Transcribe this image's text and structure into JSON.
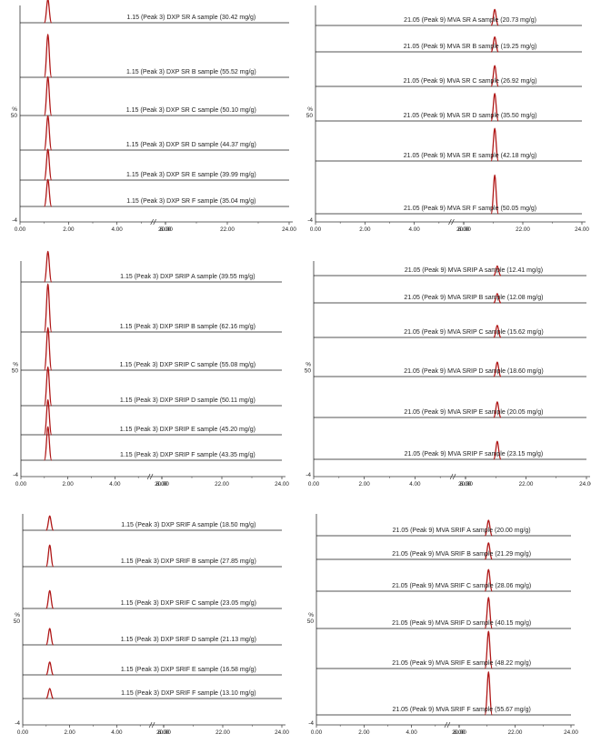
{
  "colors": {
    "baseline": "#1a1a1a",
    "peak": "#b01818",
    "axis": "#333333"
  },
  "chart_data": [
    {
      "type": "line",
      "title": "",
      "compound": "DXP",
      "x_ticks": [
        "0.00",
        "2.00",
        "4.00",
        "6.00",
        "20.00",
        "22.00",
        "24.00"
      ],
      "axis_break": "6.00-20.00",
      "y_label": "%",
      "y_ticks": [
        "50",
        "-4"
      ],
      "peak_rt": 1.15,
      "series": [
        {
          "label": "1.15 (Peak 3) DXP SR A sample (30.42 mg/g)",
          "value": 30.42
        },
        {
          "label": "1.15 (Peak 3) DXP SR B sample (55.52 mg/g)",
          "value": 55.52
        },
        {
          "label": "1.15 (Peak 3) DXP SR C sample (50.10 mg/g)",
          "value": 50.1
        },
        {
          "label": "1.15 (Peak 3) DXP SR D sample (44.37 mg/g)",
          "value": 44.37
        },
        {
          "label": "1.15 (Peak 3) DXP SR E sample (39.99 mg/g)",
          "value": 39.99
        },
        {
          "label": "1.15 (Peak 3) DXP SR F sample (35.04 mg/g)",
          "value": 35.04
        }
      ]
    },
    {
      "type": "line",
      "title": "",
      "compound": "MVA",
      "x_ticks": [
        "0.00",
        "2.00",
        "4.00",
        "6.00",
        "20.00",
        "22.00",
        "24.00"
      ],
      "axis_break": "6.00-20.00",
      "y_label": "%",
      "y_ticks": [
        "50",
        "-4"
      ],
      "peak_rt": 21.05,
      "series": [
        {
          "label": "21.05 (Peak 9) MVA SR A sample (20.73 mg/g)",
          "value": 20.73
        },
        {
          "label": "21.05 (Peak 9) MVA SR B sample (19.25 mg/g)",
          "value": 19.25
        },
        {
          "label": "21.05 (Peak 9) MVA SR C sample (26.92 mg/g)",
          "value": 26.92
        },
        {
          "label": "21.05 (Peak 9) MVA SR D sample (35.50 mg/g)",
          "value": 35.5
        },
        {
          "label": "21.05 (Peak 9) MVA SR E sample (42.18 mg/g)",
          "value": 42.18
        },
        {
          "label": "21.05 (Peak 9) MVA SR F sample (50.05 mg/g)",
          "value": 50.05
        }
      ]
    },
    {
      "type": "line",
      "title": "",
      "compound": "DXP",
      "x_ticks": [
        "0.00",
        "2.00",
        "4.00",
        "6.00",
        "20.00",
        "22.00",
        "24.00"
      ],
      "axis_break": "6.00-20.00",
      "y_label": "%",
      "y_ticks": [
        "50",
        "-4"
      ],
      "peak_rt": 1.15,
      "series": [
        {
          "label": "1.15 (Peak 3) DXP SRIP A sample (39.55 mg/g)",
          "value": 39.55
        },
        {
          "label": "1.15 (Peak 3) DXP SRIP B sample (62.16 mg/g)",
          "value": 62.16
        },
        {
          "label": "1.15 (Peak 3) DXP SRIP C sample (55.08 mg/g)",
          "value": 55.08
        },
        {
          "label": "1.15 (Peak 3) DXP SRIP D sample (50.11 mg/g)",
          "value": 50.11
        },
        {
          "label": "1.15 (Peak 3) DXP SRIP E sample (45.20 mg/g)",
          "value": 45.2
        },
        {
          "label": "1.15 (Peak 3) DXP SRIP F sample (43.35 mg/g)",
          "value": 43.35
        }
      ]
    },
    {
      "type": "line",
      "title": "",
      "compound": "MVA",
      "x_ticks": [
        "0.00",
        "2.00",
        "4.00",
        "6.00",
        "20.00",
        "22.00",
        "24.00"
      ],
      "axis_break": "6.00-20.00",
      "y_label": "%",
      "y_ticks": [
        "50",
        "-4"
      ],
      "peak_rt": 21.05,
      "series": [
        {
          "label": "21.05 (Peak 9) MVA SRIP A sample (12.41 mg/g)",
          "value": 12.41
        },
        {
          "label": "21.05 (Peak 9) MVA SRIP B sample (12.08 mg/g)",
          "value": 12.08
        },
        {
          "label": "21.05 (Peak 9) MVA SRIP C sample (15.62 mg/g)",
          "value": 15.62
        },
        {
          "label": "21.05 (Peak 9) MVA SRIP D sample (18.60 mg/g)",
          "value": 18.6
        },
        {
          "label": "21.05 (Peak 9) MVA SRIP E sample (20.05 mg/g)",
          "value": 20.05
        },
        {
          "label": "21.05 (Peak 9) MVA SRIP F sample (23.15 mg/g)",
          "value": 23.15
        }
      ]
    },
    {
      "type": "line",
      "title": "",
      "compound": "DXP",
      "x_ticks": [
        "0.00",
        "2.00",
        "4.00",
        "6.00",
        "20.00",
        "22.00",
        "24.00"
      ],
      "axis_break": "6.00-20.00",
      "y_label": "%",
      "y_ticks": [
        "50",
        "-4"
      ],
      "peak_rt": 1.15,
      "series": [
        {
          "label": "1.15 (Peak 3) DXP SRIF A sample (18.50 mg/g)",
          "value": 18.5
        },
        {
          "label": "1.15 (Peak 3) DXP SRIF B sample (27.85 mg/g)",
          "value": 27.85
        },
        {
          "label": "1.15 (Peak 3) DXP SRIF C sample (23.05 mg/g)",
          "value": 23.05
        },
        {
          "label": "1.15 (Peak 3) DXP SRIF D sample (21.13 mg/g)",
          "value": 21.13
        },
        {
          "label": "1.15 (Peak 3) DXP SRIF E sample (16.58 mg/g)",
          "value": 16.58
        },
        {
          "label": "1.15 (Peak 3) DXP SRIF F sample (13.10 mg/g)",
          "value": 13.1
        }
      ]
    },
    {
      "type": "line",
      "title": "",
      "compound": "MVA",
      "x_ticks": [
        "0.00",
        "2.00",
        "4.00",
        "6.00",
        "20.00",
        "22.00",
        "24.00"
      ],
      "axis_break": "6.00-20.00",
      "y_label": "%",
      "y_ticks": [
        "50",
        "-4"
      ],
      "peak_rt": 21.05,
      "series": [
        {
          "label": "21.05 (Peak 9) MVA SRIF A sample (20.00 mg/g)",
          "value": 20.0
        },
        {
          "label": "21.05 (Peak 9) MVA SRIF B sample (21.29 mg/g)",
          "value": 21.29
        },
        {
          "label": "21.05 (Peak 9) MVA SRIF C sample (28.06 mg/g)",
          "value": 28.06
        },
        {
          "label": "21.05 (Peak 9) MVA SRIF D sample (40.15 mg/g)",
          "value": 40.15
        },
        {
          "label": "21.05 (Peak 9) MVA SRIF E sample (48.22 mg/g)",
          "value": 48.22
        },
        {
          "label": "21.05 (Peak 9) MVA SRIF F sample (55.67 mg/g)",
          "value": 55.67
        }
      ]
    }
  ]
}
